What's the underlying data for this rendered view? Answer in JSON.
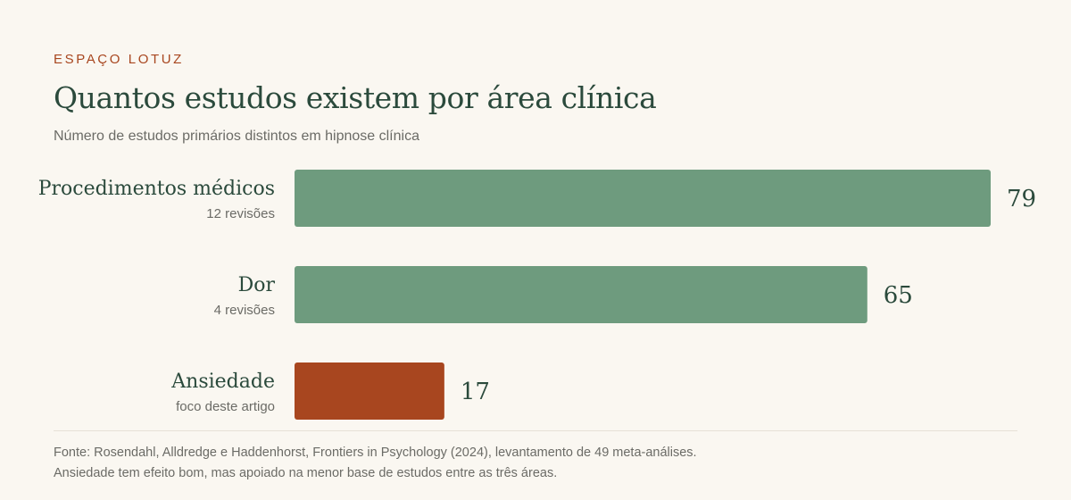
{
  "header": {
    "brand": "ESPAÇO LOTUZ",
    "title": "Quantos estudos existem por área clínica",
    "subtitle": "Número de estudos primários distintos em hipnose clínica"
  },
  "colors": {
    "bar_default": "#6e9b7e",
    "bar_highlight": "#a8461f",
    "text_dark": "#2b4a3c",
    "text_muted": "#6b6b66",
    "brand": "#a8461f"
  },
  "chart_data": {
    "type": "bar",
    "orientation": "horizontal",
    "title": "Quantos estudos existem por área clínica",
    "subtitle": "Número de estudos primários distintos em hipnose clínica",
    "categories": [
      "Procedimentos médicos",
      "Dor",
      "Ansiedade"
    ],
    "sublabels": [
      "12 revisões",
      "4 revisões",
      "foco deste artigo"
    ],
    "values": [
      79,
      65,
      17
    ],
    "highlight": [
      false,
      false,
      true
    ],
    "xlim": [
      0,
      79
    ],
    "grid": false,
    "legend": "none"
  },
  "footer": {
    "source": "Fonte: Rosendahl, Alldredge e Haddenhorst, Frontiers in Psychology (2024), levantamento de 49 meta-análises.",
    "note": "Ansiedade tem efeito bom, mas apoiado na menor base de estudos entre as três áreas."
  }
}
